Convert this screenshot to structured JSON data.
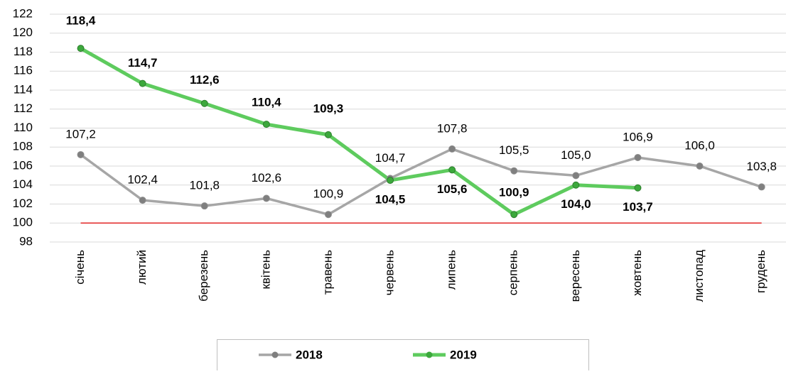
{
  "chart_data": {
    "type": "line",
    "categories": [
      "січень",
      "лютий",
      "березень",
      "квітень",
      "травень",
      "червень",
      "липень",
      "серпень",
      "вересень",
      "жовтень",
      "листопад",
      "грудень"
    ],
    "series": [
      {
        "name": "2018",
        "color": "#a6a6a6",
        "marker_color": "#7f7f7f",
        "values": [
          107.2,
          102.4,
          101.8,
          102.6,
          100.9,
          104.7,
          107.8,
          105.5,
          105.0,
          106.9,
          106.0,
          103.8
        ],
        "value_labels": [
          "107,2",
          "102,4",
          "101,8",
          "102,6",
          "100,9",
          "104,7",
          "107,8",
          "105,5",
          "105,0",
          "106,9",
          "106,0",
          "103,8"
        ]
      },
      {
        "name": "2019",
        "color": "#5ecb5e",
        "marker_color": "#3ca83c",
        "values": [
          118.4,
          114.7,
          112.6,
          110.4,
          109.3,
          104.5,
          105.6,
          100.9,
          104.0,
          103.7,
          null,
          null
        ],
        "value_labels": [
          "118,4",
          "114,7",
          "112,6",
          "110,4",
          "109,3",
          "104,5",
          "105,6",
          "100,9",
          "104,0",
          "103,7",
          null,
          null
        ]
      }
    ],
    "ylim": [
      98,
      122
    ],
    "yticks": [
      98,
      100,
      102,
      104,
      106,
      108,
      110,
      112,
      114,
      116,
      118,
      120,
      122
    ],
    "reference_line": {
      "value": 100,
      "color": "#e00000"
    },
    "legend": "bottom"
  }
}
